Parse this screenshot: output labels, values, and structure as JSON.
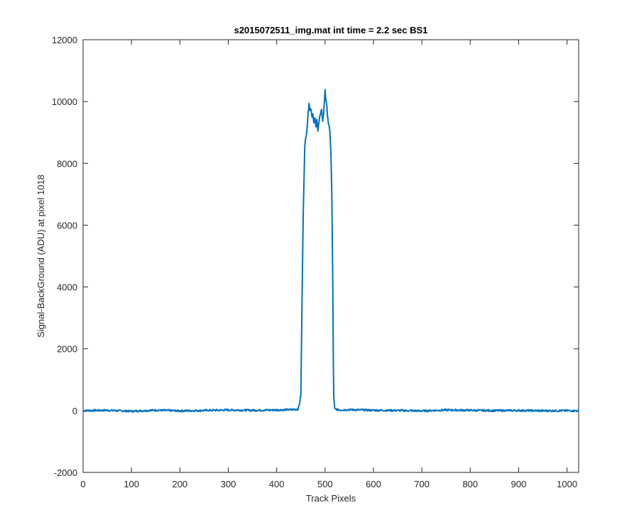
{
  "chart_data": {
    "type": "line",
    "title": "s2015072511_img.mat int time = 2.2 sec   BS1",
    "xlabel": "Track Pixels",
    "ylabel": "Signal-BackGround (ADU) at pixel 1018",
    "xlim": [
      0,
      1024
    ],
    "ylim": [
      -2000,
      12000
    ],
    "xticks": [
      0,
      100,
      200,
      300,
      400,
      500,
      600,
      700,
      800,
      900,
      1000
    ],
    "yticks": [
      -2000,
      0,
      2000,
      4000,
      6000,
      8000,
      10000,
      12000
    ],
    "grid": false,
    "line_color": "#0072BD",
    "series": [
      {
        "x": [
          0,
          50,
          100,
          150,
          200,
          250,
          300,
          350,
          400,
          430,
          445,
          450,
          452,
          455,
          458,
          460,
          463,
          465,
          467,
          469,
          471,
          473,
          475,
          477,
          479,
          481,
          483,
          485,
          487,
          489,
          491,
          493,
          495,
          497,
          499,
          500,
          501,
          503,
          505,
          507,
          510,
          512,
          514,
          516,
          517,
          518,
          520,
          530,
          550,
          600,
          650,
          700,
          750,
          800,
          850,
          900,
          950,
          1000,
          1024
        ],
        "y": [
          0,
          10,
          -20,
          15,
          -10,
          5,
          20,
          10,
          20,
          30,
          50,
          500,
          3000,
          6500,
          8500,
          8800,
          9200,
          9600,
          10000,
          9700,
          9800,
          9500,
          9600,
          9300,
          9450,
          9200,
          9400,
          9100,
          9300,
          9500,
          9600,
          9700,
          9400,
          9600,
          10100,
          10400,
          10200,
          9900,
          9600,
          9300,
          9000,
          8400,
          7000,
          4000,
          1800,
          400,
          50,
          20,
          30,
          10,
          5,
          -10,
          20,
          10,
          0,
          5,
          -5,
          0,
          -10
        ]
      }
    ]
  }
}
